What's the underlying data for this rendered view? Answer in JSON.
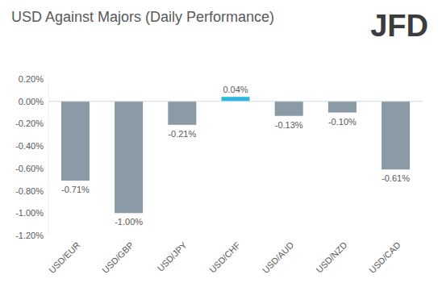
{
  "chart_data": {
    "type": "bar",
    "title": "USD Against Majors (Daily Performance)",
    "annotations": [
      "JFD"
    ],
    "categories": [
      "USD/EUR",
      "USD/GBP",
      "USD/JPY",
      "USD/CHF",
      "USD/AUD",
      "USD/NZD",
      "USD/CAD"
    ],
    "values": [
      -0.71,
      -1.0,
      -0.21,
      0.04,
      -0.13,
      -0.1,
      -0.61
    ],
    "value_labels": [
      "-0.71%",
      "-1.00%",
      "-0.21%",
      "0.04%",
      "-0.13%",
      "-0.10%",
      "-0.61%"
    ],
    "colors": [
      "#8a9ba5",
      "#8a9ba5",
      "#8a9ba5",
      "#29b6e0",
      "#8a9ba5",
      "#8a9ba5",
      "#8a9ba5"
    ],
    "ylim": [
      -1.2,
      0.2
    ],
    "yticks": [
      {
        "value": 0.2,
        "label": "0.20%"
      },
      {
        "value": 0,
        "label": "0.00%"
      },
      {
        "value": -0.2,
        "label": "-0.20%"
      },
      {
        "value": -0.4,
        "label": "-0.40%"
      },
      {
        "value": -0.6,
        "label": "-0.60%"
      },
      {
        "value": -0.8,
        "label": "-0.80%"
      },
      {
        "value": -1,
        "label": "-1.00%"
      },
      {
        "value": -1.2,
        "label": "-1.20%"
      }
    ],
    "grid": false,
    "data_labels": true
  }
}
